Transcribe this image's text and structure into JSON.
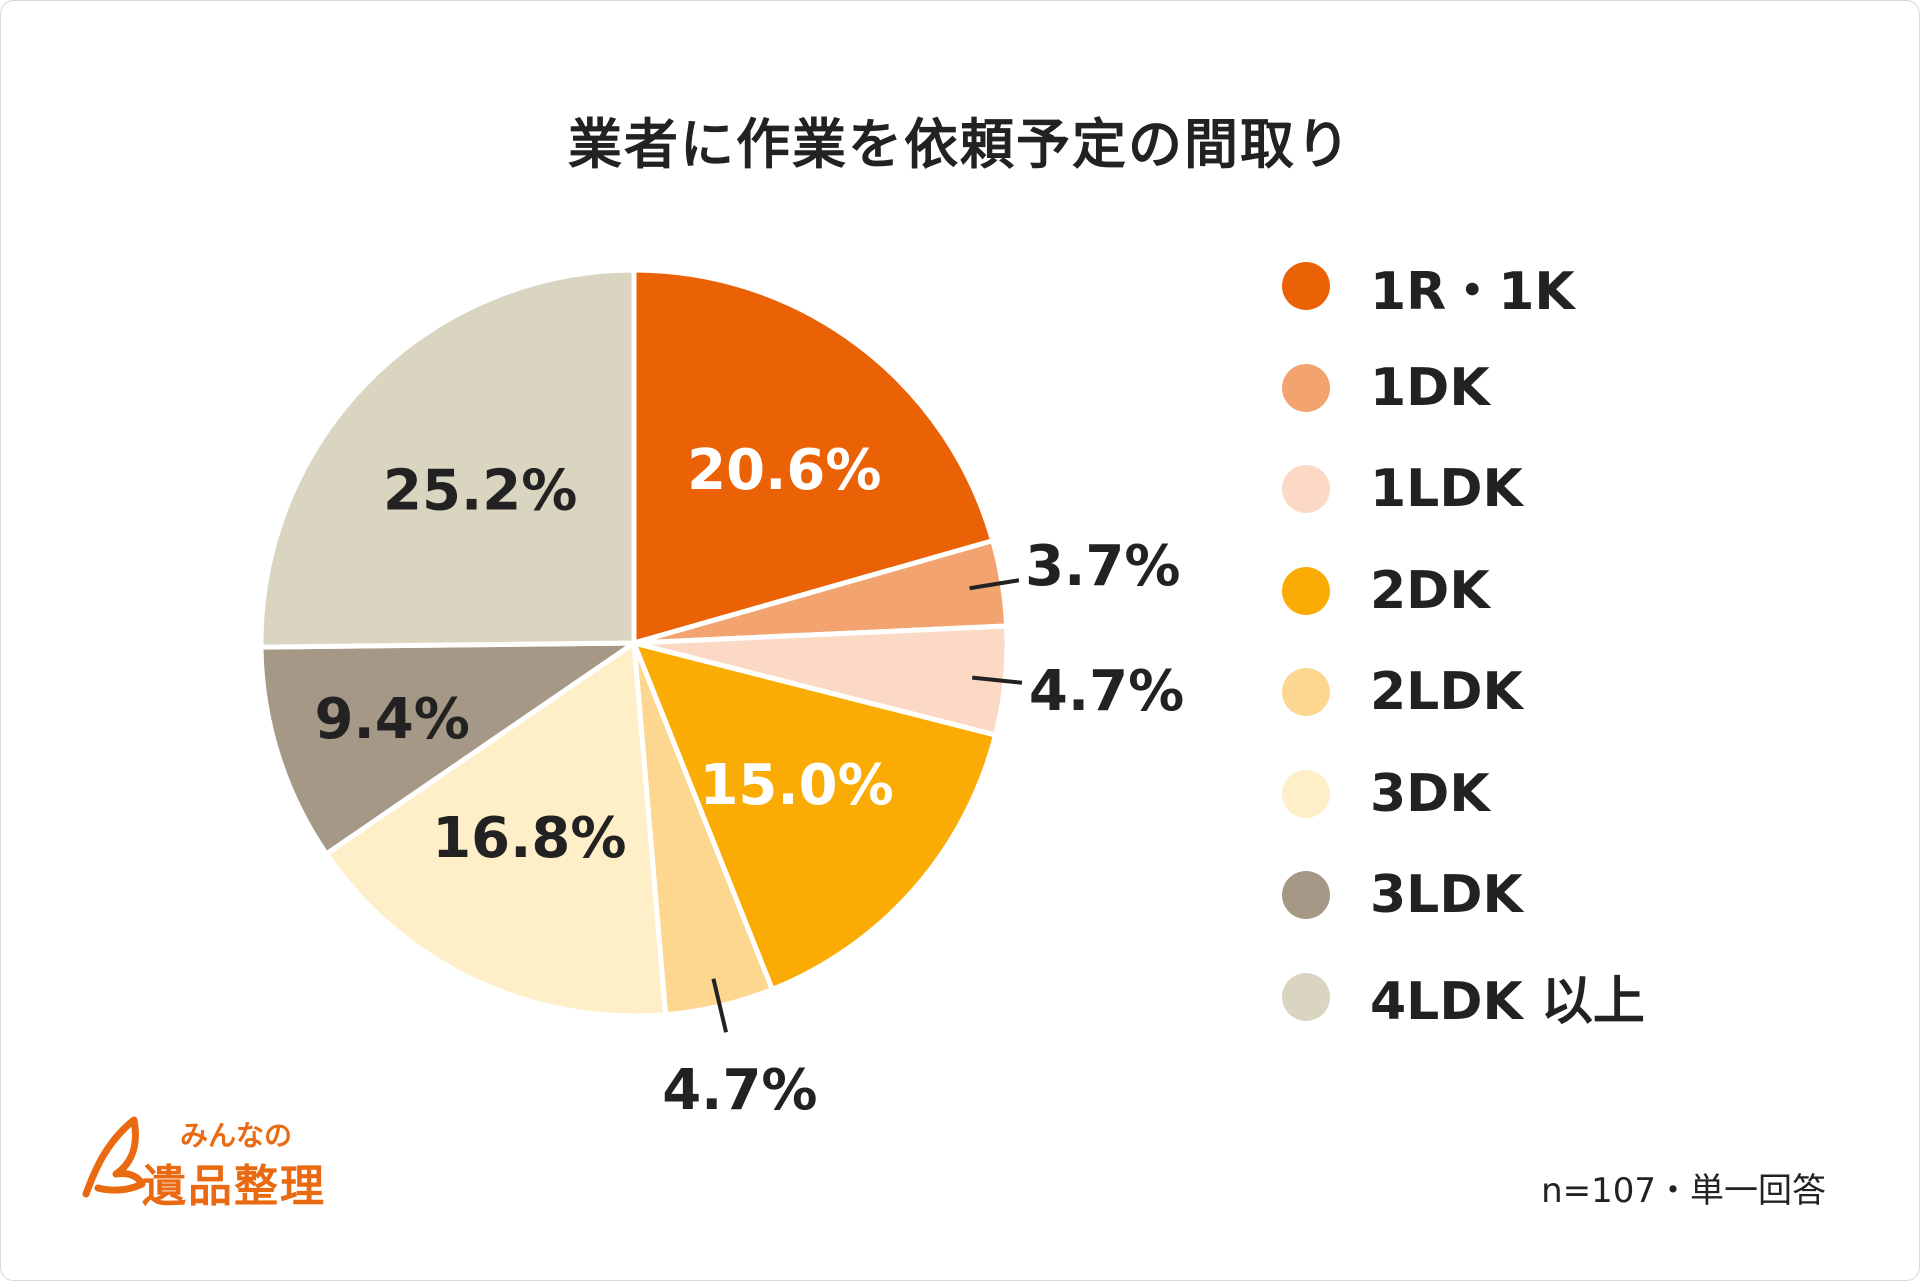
{
  "chart_data": {
    "type": "pie",
    "title": "業者に作業を依頼予定の間取り",
    "categories": [
      "1R・1K",
      "1DK",
      "1LDK",
      "2DK",
      "2LDK",
      "3DK",
      "3LDK",
      "4LDK 以上"
    ],
    "values": [
      20.6,
      3.7,
      4.7,
      15.0,
      4.7,
      16.8,
      9.4,
      25.2
    ],
    "labels": [
      "20.6%",
      "3.7%",
      "4.7%",
      "15.0%",
      "4.7%",
      "16.8%",
      "9.4%",
      "25.2%"
    ],
    "colors": [
      "#eb6206",
      "#f2a370",
      "#fbd9c4",
      "#fbac04",
      "#fdd690",
      "#feefc8",
      "#a59886",
      "#d9d5c0"
    ],
    "label_colors": [
      "#ffffff",
      "#222222",
      "#222222",
      "#ffffff",
      "#222222",
      "#222222",
      "#222222",
      "#222222"
    ],
    "legend_position": "right",
    "start_angle": "top, clockwise"
  },
  "footnote": "n=107・単一回答",
  "logo": {
    "line1": "みんなの",
    "line2": "遺品整理",
    "color": "#ea6a12"
  }
}
